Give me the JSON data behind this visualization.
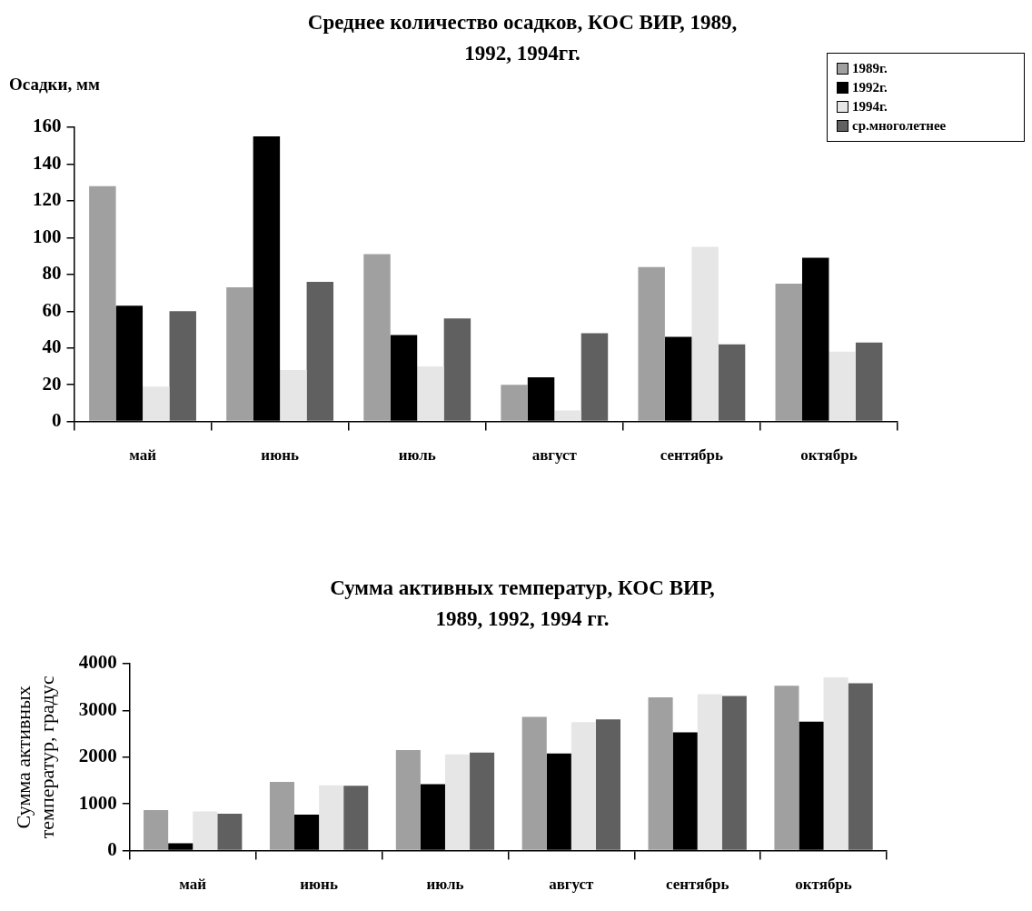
{
  "chart_data": [
    {
      "type": "bar",
      "title": "Среднее количество осадков, КОС ВИР, 1989, 1992, 1994гг.",
      "ylabel": "Осадки, мм",
      "categories": [
        "май",
        "июнь",
        "июль",
        "август",
        "сентябрь",
        "октябрь"
      ],
      "series": [
        {
          "name": "1989г.",
          "color": "#a0a0a0",
          "values": [
            128,
            73,
            91,
            20,
            84,
            75
          ]
        },
        {
          "name": "1992г.",
          "color": "#000000",
          "values": [
            63,
            155,
            47,
            24,
            46,
            89
          ]
        },
        {
          "name": "1994г.",
          "color": "#e6e6e6",
          "values": [
            19,
            28,
            30,
            6,
            95,
            38
          ]
        },
        {
          "name": "ср.многолетнее",
          "color": "#606060",
          "values": [
            60,
            76,
            56,
            48,
            42,
            43
          ]
        }
      ],
      "ylim": [
        0,
        160
      ],
      "yticks": [
        0,
        20,
        40,
        60,
        80,
        100,
        120,
        140,
        160
      ],
      "grid": false,
      "legend": "top right"
    },
    {
      "type": "bar",
      "title": "Сумма активных температур, КОС ВИР, 1989, 1992,   1994 гг.",
      "ylabel": "Сумма активных температур, градус",
      "categories": [
        "май",
        "июнь",
        "июль",
        "август",
        "сентябрь",
        "октябрь"
      ],
      "series": [
        {
          "color": "#a0a0a0",
          "values": [
            870,
            1470,
            2150,
            2860,
            3280,
            3530
          ]
        },
        {
          "color": "#000000",
          "values": [
            160,
            770,
            1420,
            2080,
            2530,
            2760
          ]
        },
        {
          "color": "#e6e6e6",
          "values": [
            840,
            1400,
            2060,
            2750,
            3350,
            3710
          ]
        },
        {
          "color": "#606060",
          "values": [
            790,
            1390,
            2100,
            2810,
            3310,
            3580
          ]
        }
      ],
      "ylim": [
        0,
        4000
      ],
      "yticks": [
        0,
        1000,
        2000,
        3000,
        4000
      ],
      "grid": false,
      "legend": false
    }
  ]
}
